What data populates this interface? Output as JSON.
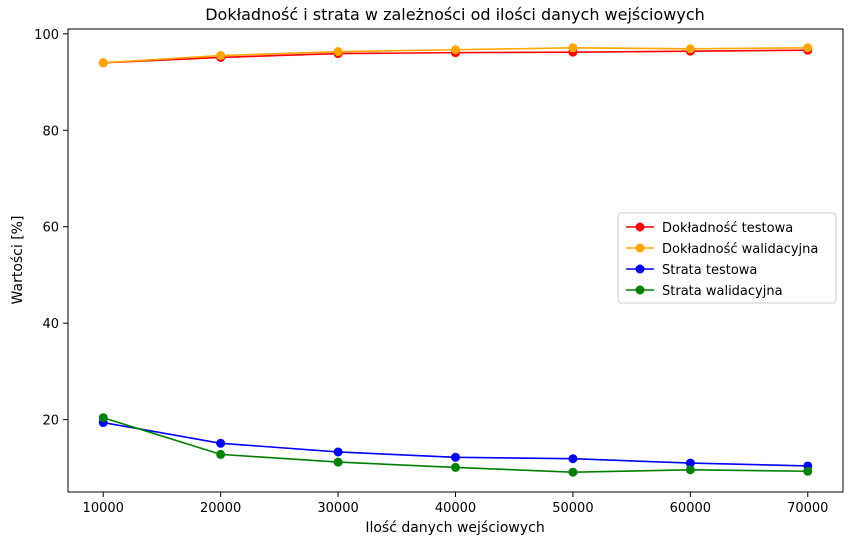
{
  "chart_data": {
    "type": "line",
    "title": "Dokładność i strata w zależności od ilości danych wejściowych",
    "xlabel": "Ilość danych wejściowych",
    "ylabel": "Wartości [%]",
    "x": [
      10000,
      20000,
      30000,
      40000,
      50000,
      60000,
      70000
    ],
    "xlim": [
      7000,
      73000
    ],
    "ylim": [
      5,
      101
    ],
    "xticks": [
      10000,
      20000,
      30000,
      40000,
      50000,
      60000,
      70000
    ],
    "yticks": [
      20,
      40,
      60,
      80,
      100
    ],
    "grid": false,
    "legend_position": "center-right",
    "series": [
      {
        "name": "Dokładność testowa",
        "color": "#ff0000",
        "values": [
          94.0,
          95.1,
          95.9,
          96.1,
          96.2,
          96.4,
          96.6
        ]
      },
      {
        "name": "Dokładność walidacyjna",
        "color": "#ffa500",
        "values": [
          94.0,
          95.5,
          96.3,
          96.7,
          97.1,
          96.9,
          97.1
        ]
      },
      {
        "name": "Strata testowa",
        "color": "#0000ff",
        "values": [
          19.4,
          15.1,
          13.3,
          12.2,
          11.9,
          11.0,
          10.4
        ]
      },
      {
        "name": "Strata walidacyjna",
        "color": "#008000",
        "values": [
          20.4,
          12.8,
          11.2,
          10.1,
          9.1,
          9.6,
          9.3
        ]
      }
    ]
  }
}
